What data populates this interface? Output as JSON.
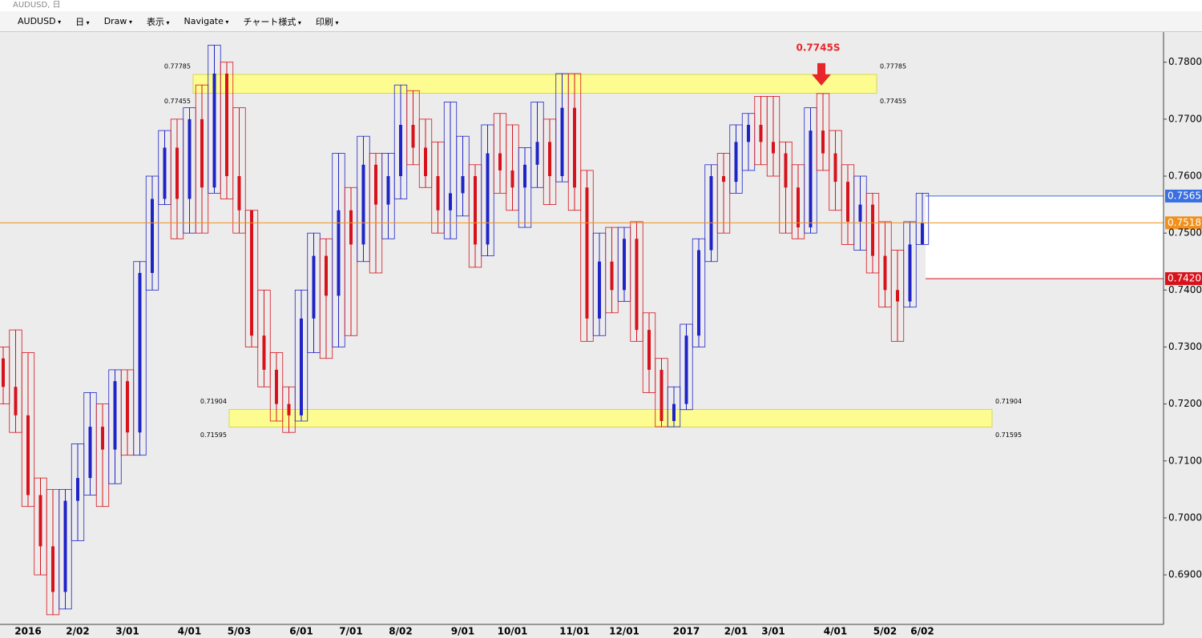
{
  "ui": {
    "window_title": "AUDUSD, 日",
    "toolbar": [
      "AUDUSD",
      "日",
      "Draw",
      "表示",
      "Navigate",
      "チャート様式",
      "印刷"
    ]
  },
  "chart_data": {
    "type": "candlestick",
    "categories": [
      null,
      null,
      "2016",
      null,
      null,
      null,
      "2/02",
      null,
      null,
      null,
      "3/01",
      null,
      null,
      null,
      null,
      "4/01",
      null,
      null,
      null,
      "5/03",
      null,
      null,
      null,
      null,
      "6/01",
      null,
      null,
      null,
      "7/01",
      null,
      null,
      null,
      "8/02",
      null,
      null,
      null,
      null,
      "9/01",
      null,
      null,
      null,
      "10/01",
      null,
      null,
      null,
      null,
      "11/01",
      null,
      null,
      null,
      "12/01",
      null,
      null,
      null,
      null,
      "2017",
      null,
      null,
      null,
      "2/01",
      null,
      null,
      "3/01",
      null,
      null,
      null,
      null,
      "4/01",
      null,
      null,
      null,
      "5/02",
      null,
      null,
      "6/02"
    ],
    "open": [
      0.728,
      0.723,
      0.718,
      0.704,
      0.695,
      0.687,
      0.703,
      0.707,
      0.716,
      0.712,
      0.724,
      0.715,
      0.743,
      0.756,
      0.765,
      0.756,
      0.77,
      0.758,
      0.778,
      0.76,
      0.754,
      0.732,
      0.726,
      0.72,
      0.718,
      0.735,
      0.746,
      0.739,
      0.754,
      0.748,
      0.762,
      0.755,
      0.76,
      0.769,
      0.765,
      0.76,
      0.754,
      0.757,
      0.76,
      0.748,
      0.764,
      0.761,
      0.758,
      0.762,
      0.766,
      0.76,
      0.772,
      0.758,
      0.735,
      0.745,
      0.74,
      0.749,
      0.733,
      0.726,
      0.717,
      0.72,
      0.732,
      0.747,
      0.76,
      0.759,
      0.766,
      0.769,
      0.766,
      0.764,
      0.758,
      0.751,
      0.768,
      0.764,
      0.759,
      0.752,
      0.755,
      0.746,
      0.74,
      0.738,
      0.748
    ],
    "high": [
      0.73,
      0.733,
      0.729,
      0.707,
      0.705,
      0.705,
      0.713,
      0.722,
      0.72,
      0.726,
      0.726,
      0.745,
      0.76,
      0.768,
      0.77,
      0.772,
      0.776,
      0.783,
      0.78,
      0.772,
      0.754,
      0.74,
      0.729,
      0.723,
      0.74,
      0.75,
      0.749,
      0.764,
      0.758,
      0.767,
      0.764,
      0.764,
      0.776,
      0.775,
      0.77,
      0.766,
      0.773,
      0.767,
      0.762,
      0.769,
      0.771,
      0.769,
      0.765,
      0.773,
      0.77,
      0.778,
      0.778,
      0.761,
      0.75,
      0.751,
      0.751,
      0.752,
      0.736,
      0.728,
      0.723,
      0.734,
      0.749,
      0.762,
      0.764,
      0.769,
      0.771,
      0.774,
      0.774,
      0.766,
      0.762,
      0.772,
      0.7745,
      0.768,
      0.762,
      0.76,
      0.757,
      0.752,
      0.747,
      0.752,
      0.757
    ],
    "low": [
      0.72,
      0.715,
      0.702,
      0.69,
      0.683,
      0.684,
      0.696,
      0.704,
      0.702,
      0.706,
      0.711,
      0.711,
      0.74,
      0.755,
      0.749,
      0.75,
      0.75,
      0.757,
      0.756,
      0.75,
      0.73,
      0.723,
      0.717,
      0.715,
      0.717,
      0.729,
      0.728,
      0.73,
      0.732,
      0.745,
      0.743,
      0.749,
      0.756,
      0.762,
      0.758,
      0.75,
      0.749,
      0.753,
      0.744,
      0.746,
      0.757,
      0.754,
      0.751,
      0.758,
      0.755,
      0.759,
      0.754,
      0.731,
      0.732,
      0.736,
      0.738,
      0.731,
      0.722,
      0.716,
      0.716,
      0.719,
      0.73,
      0.745,
      0.75,
      0.757,
      0.761,
      0.762,
      0.76,
      0.75,
      0.749,
      0.75,
      0.761,
      0.754,
      0.748,
      0.747,
      0.743,
      0.737,
      0.731,
      0.737,
      0.748
    ],
    "close": [
      0.723,
      0.718,
      0.704,
      0.695,
      0.687,
      0.703,
      0.707,
      0.716,
      0.712,
      0.724,
      0.715,
      0.743,
      0.756,
      0.765,
      0.756,
      0.77,
      0.758,
      0.778,
      0.76,
      0.754,
      0.732,
      0.726,
      0.72,
      0.718,
      0.735,
      0.746,
      0.739,
      0.754,
      0.748,
      0.762,
      0.755,
      0.76,
      0.769,
      0.765,
      0.76,
      0.754,
      0.757,
      0.76,
      0.748,
      0.764,
      0.761,
      0.758,
      0.762,
      0.766,
      0.76,
      0.772,
      0.758,
      0.735,
      0.745,
      0.74,
      0.749,
      0.733,
      0.726,
      0.717,
      0.72,
      0.732,
      0.747,
      0.76,
      0.759,
      0.766,
      0.769,
      0.766,
      0.764,
      0.758,
      0.751,
      0.768,
      0.764,
      0.759,
      0.752,
      0.755,
      0.746,
      0.74,
      0.738,
      0.748,
      0.7518
    ],
    "up_color": "#1f24c8",
    "down_color": "#d8121b",
    "ylim": [
      0.6813,
      0.7853
    ],
    "yticks": [
      {
        "value": 0.69,
        "label": "0.6900"
      },
      {
        "value": 0.7,
        "label": "0.7000"
      },
      {
        "value": 0.71,
        "label": "0.7100"
      },
      {
        "value": 0.72,
        "label": "0.7200"
      },
      {
        "value": 0.73,
        "label": "0.7300"
      },
      {
        "value": 0.74,
        "label": "0.7400"
      },
      {
        "value": 0.75,
        "label": "0.7500"
      },
      {
        "value": 0.76,
        "label": "0.7600"
      },
      {
        "value": 0.77,
        "label": "0.7700"
      },
      {
        "value": 0.78,
        "label": "0.7800"
      }
    ],
    "zones": [
      {
        "low": 0.77455,
        "high": 0.77785
      },
      {
        "low": 0.71595,
        "high": 0.71904
      }
    ],
    "price_lines": [
      {
        "value": 0.7565,
        "label": "0.7565",
        "color": "#3a6fe0"
      },
      {
        "value": 0.7518,
        "label": "0.7518",
        "color": "#f0901e"
      },
      {
        "value": 0.742,
        "label": "0.7420",
        "color": "#d8121b"
      }
    ],
    "annotation": {
      "text": "0.7745S",
      "value": 0.7745
    }
  }
}
